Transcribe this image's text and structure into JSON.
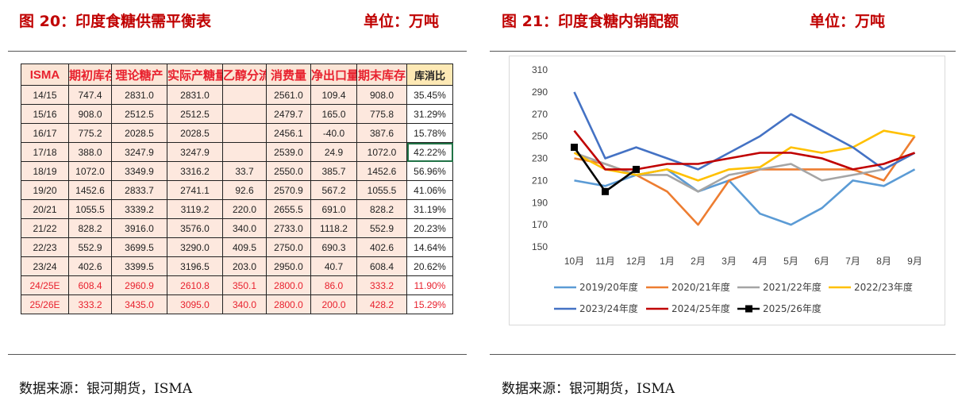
{
  "left": {
    "title": "图 20：印度食糖供需平衡表",
    "unit": "单位：万吨",
    "source": "数据来源：银河期货，ISMA"
  },
  "right": {
    "title": "图 21：印度食糖内销配额",
    "unit": "单位：万吨",
    "source": "数据来源：银河期货，ISMA"
  },
  "colors": {
    "title_red": "#c00000",
    "table_head_red": "#e8212e",
    "table_cell_bg": "#fde8de",
    "ratio_head_bg": "#fde9b5"
  },
  "table": {
    "headers": [
      "ISMA",
      "期初库存",
      "理论糖产",
      "实际产糖量",
      "乙醇分流",
      "消费量",
      "净出口量",
      "期末库存",
      "库消比"
    ],
    "rows": [
      {
        "c": [
          "14/15",
          "747.4",
          "2831.0",
          "2831.0",
          "",
          "2561.0",
          "109.4",
          "908.0",
          "35.45%"
        ],
        "est": false
      },
      {
        "c": [
          "15/16",
          "908.0",
          "2512.5",
          "2512.5",
          "",
          "2479.7",
          "165.0",
          "775.8",
          "31.29%"
        ],
        "est": false
      },
      {
        "c": [
          "16/17",
          "775.2",
          "2028.5",
          "2028.5",
          "",
          "2456.1",
          "-40.0",
          "387.6",
          "15.78%"
        ],
        "est": false
      },
      {
        "c": [
          "17/18",
          "388.0",
          "3247.9",
          "3247.9",
          "",
          "2539.0",
          "24.9",
          "1072.0",
          "42.22%"
        ],
        "est": false
      },
      {
        "c": [
          "18/19",
          "1072.0",
          "3349.9",
          "3316.2",
          "33.7",
          "2550.0",
          "385.7",
          "1452.6",
          "56.96%"
        ],
        "est": false
      },
      {
        "c": [
          "19/20",
          "1452.6",
          "2833.7",
          "2741.1",
          "92.6",
          "2570.9",
          "567.2",
          "1055.5",
          "41.06%"
        ],
        "est": false
      },
      {
        "c": [
          "20/21",
          "1055.5",
          "3339.2",
          "3119.2",
          "220.0",
          "2655.5",
          "691.0",
          "828.2",
          "31.19%"
        ],
        "est": false
      },
      {
        "c": [
          "21/22",
          "828.2",
          "3916.0",
          "3576.0",
          "340.0",
          "2733.0",
          "1118.2",
          "552.9",
          "20.23%"
        ],
        "est": false
      },
      {
        "c": [
          "22/23",
          "552.9",
          "3699.5",
          "3290.0",
          "409.5",
          "2750.0",
          "690.3",
          "402.6",
          "14.64%"
        ],
        "est": false
      },
      {
        "c": [
          "23/24",
          "402.6",
          "3399.5",
          "3196.5",
          "203.0",
          "2950.0",
          "40.7",
          "608.4",
          "20.62%"
        ],
        "est": false
      },
      {
        "c": [
          "24/25E",
          "608.4",
          "2960.9",
          "2610.8",
          "350.1",
          "2800.0",
          "86.0",
          "333.2",
          "11.90%"
        ],
        "est": true
      },
      {
        "c": [
          "25/26E",
          "333.2",
          "3435.0",
          "3095.0",
          "340.0",
          "2800.0",
          "200.0",
          "428.2",
          "15.29%"
        ],
        "est": true
      }
    ]
  },
  "chart_data": {
    "type": "line",
    "categories": [
      "10月",
      "11月",
      "12月",
      "1月",
      "2月",
      "3月",
      "4月",
      "5月",
      "6月",
      "7月",
      "8月",
      "9月"
    ],
    "ylim": [
      150,
      310
    ],
    "yticks": [
      150,
      170,
      190,
      210,
      230,
      250,
      270,
      290,
      310
    ],
    "grid": false,
    "legend_position": "bottom",
    "series": [
      {
        "name": "2019/20年度",
        "color": "#5b9bd5",
        "marker": false,
        "values": [
          210,
          205,
          215,
          220,
          200,
          210,
          180,
          170,
          185,
          210,
          205,
          220
        ]
      },
      {
        "name": "2020/21年度",
        "color": "#ed7d31",
        "marker": false,
        "values": [
          230,
          225,
          215,
          200,
          170,
          210,
          220,
          220,
          220,
          220,
          210,
          250
        ]
      },
      {
        "name": "2021/22年度",
        "color": "#a5a5a5",
        "marker": false,
        "values": [
          235,
          225,
          215,
          215,
          200,
          215,
          220,
          225,
          210,
          215,
          220,
          235
        ]
      },
      {
        "name": "2022/23年度",
        "color": "#ffc000",
        "marker": false,
        "values": [
          235,
          220,
          215,
          220,
          210,
          220,
          222,
          240,
          235,
          240,
          255,
          250
        ]
      },
      {
        "name": "2023/24年度",
        "color": "#4472c4",
        "marker": false,
        "values": [
          290,
          230,
          240,
          230,
          220,
          235,
          250,
          270,
          255,
          240,
          220,
          235
        ]
      },
      {
        "name": "2024/25年度",
        "color": "#c00000",
        "marker": false,
        "values": [
          255,
          220,
          220,
          225,
          225,
          230,
          235,
          235,
          230,
          220,
          225,
          235
        ]
      },
      {
        "name": "2025/26年度",
        "color": "#000000",
        "marker": true,
        "values": [
          240,
          200,
          220,
          null,
          null,
          null,
          null,
          null,
          null,
          null,
          null,
          null
        ]
      }
    ]
  }
}
